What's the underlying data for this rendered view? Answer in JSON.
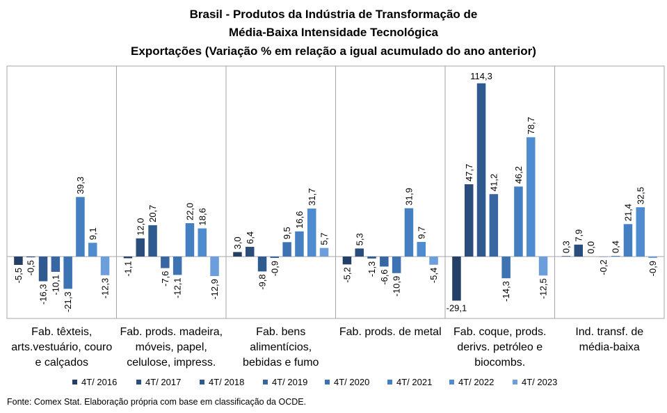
{
  "chart_data": {
    "type": "bar",
    "title_lines": [
      "Brasil - Produtos da Indústria de Transformação de",
      "Média-Baixa Intensidade Tecnológica",
      "Exportações (Variação % em relação a igual acumulado do ano anterior)"
    ],
    "categories": [
      [
        "Fab. têxteis,",
        "arts.vestuário, couro",
        "e calçados"
      ],
      [
        "Fab. prods. madeira,",
        "móveis, papel,",
        "celulose, impress."
      ],
      [
        "Fab. bens",
        "alimentícios,",
        "bebidas e fumo"
      ],
      [
        "Fab. prods. de metal"
      ],
      [
        "Fab. coque, prods.",
        "derivs. petróleo e",
        "biocombs."
      ],
      [
        "Ind. transf. de",
        "média-baixa"
      ]
    ],
    "series": [
      {
        "name": "4T/ 2016",
        "color": "#243f65",
        "values": [
          -5.5,
          -1.1,
          3.0,
          -5.2,
          -29.1,
          0.3
        ]
      },
      {
        "name": "4T/ 2017",
        "color": "#2b4d7b",
        "values": [
          -0.5,
          12.0,
          6.4,
          5.3,
          47.7,
          7.9
        ]
      },
      {
        "name": "4T/ 2018",
        "color": "#2f5a90",
        "values": [
          -16.3,
          20.7,
          -9.8,
          -1.3,
          114.3,
          0.0
        ]
      },
      {
        "name": "4T/ 2019",
        "color": "#3766a2",
        "values": [
          -10.1,
          -7.6,
          -0.9,
          -6.6,
          41.2,
          -0.2
        ]
      },
      {
        "name": "4T/ 2020",
        "color": "#3d72b3",
        "values": [
          -21.3,
          -12.1,
          9.5,
          -10.9,
          -14.3,
          0.4
        ]
      },
      {
        "name": "4T/ 2021",
        "color": "#447fc2",
        "values": [
          39.3,
          22.0,
          16.6,
          31.9,
          46.2,
          21.4
        ]
      },
      {
        "name": "4T/ 2022",
        "color": "#4f8bcf",
        "values": [
          9.1,
          18.6,
          31.7,
          9.7,
          78.7,
          32.5
        ]
      },
      {
        "name": "4T/ 2023",
        "color": "#6b9edb",
        "values": [
          -12.3,
          -12.9,
          5.7,
          -5.4,
          -12.5,
          -0.9
        ]
      }
    ],
    "data_labels": [
      [
        "-5,5",
        "-0,5",
        "-16,3",
        "-10,1",
        "-21,3",
        "39,3",
        "9,1",
        "-12,3"
      ],
      [
        "-1,1",
        "12,0",
        "20,7",
        "-7,6",
        "-12,1",
        "22,0",
        "18,6",
        "-12,9"
      ],
      [
        "3,0",
        "6,4",
        "-9,8",
        "-0,9",
        "9,5",
        "16,6",
        "31,7",
        "5,7"
      ],
      [
        "-5,2",
        "5,3",
        "-1,3",
        "-6,6",
        "-10,9",
        "31,9",
        "9,7",
        "-5,4"
      ],
      [
        "-29,1",
        "47,7",
        "114,3",
        "41,2",
        "-14,3",
        "46,2",
        "78,7",
        "-12,5"
      ],
      [
        "0,3",
        "7,9",
        "0,0",
        "-0,2",
        "0,4",
        "21,4",
        "32,5",
        "-0,9"
      ]
    ],
    "ylim": [
      -29.1,
      114.3
    ],
    "grid": false,
    "legend_position": "bottom",
    "source": "Fonte: Comex Stat. Elaboração própria com base em classificação da OCDE."
  }
}
